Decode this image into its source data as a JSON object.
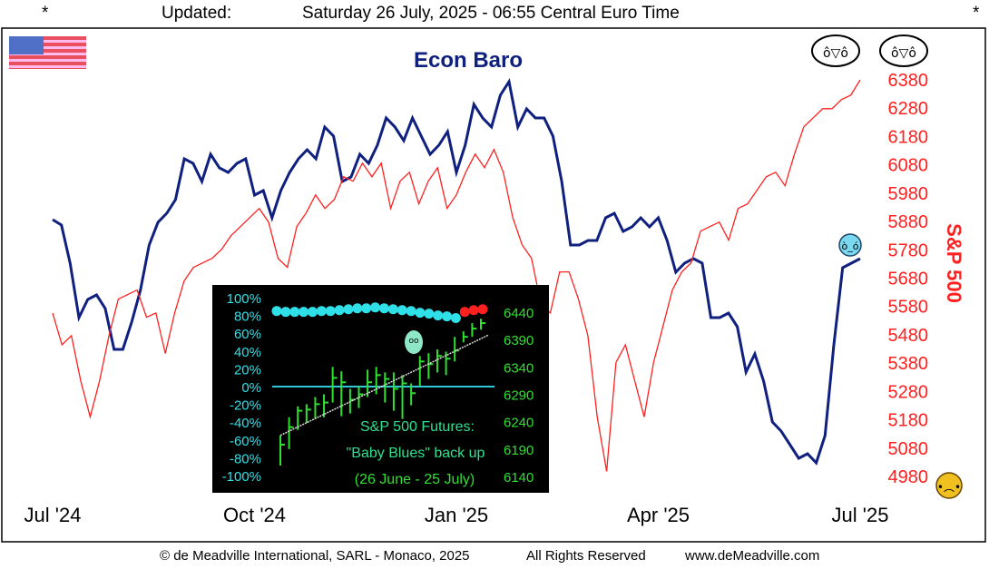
{
  "header": {
    "star_left": "*",
    "star_right": "*",
    "updated_label": "Updated:",
    "timestamp": "Saturday 26 July, 2025 - 06:55 Central Euro Time"
  },
  "footer": {
    "copyright": "© de Meadville International, SARL - Monaco, 2025",
    "rights": "All Rights Reserved",
    "website": "www.deMeadville.com"
  },
  "colors": {
    "econ": "#10207f",
    "spx": "#ff2020",
    "inset_bg": "#000000",
    "inset_cyan": "#30e0e8",
    "inset_green": "#30e030",
    "inset_red": "#ff2020"
  },
  "chart_data": [
    {
      "type": "line",
      "title": "Econ Baro",
      "right_axis_label": "S&P 500",
      "x_tick_labels": [
        "Jul '24",
        "Oct '24",
        "Jan '25",
        "Apr '25",
        "Jul '25"
      ],
      "x_ticks_months": [
        0,
        3,
        6,
        9,
        12
      ],
      "x_range_months": [
        0,
        12
      ],
      "y_right_ticks": [
        6380,
        6280,
        6180,
        6080,
        5980,
        5880,
        5780,
        5680,
        5580,
        5480,
        5380,
        5280,
        5180,
        5080,
        4980
      ],
      "y_right_range": [
        4980,
        6380
      ],
      "econ_range": [
        0,
        100
      ],
      "series": [
        {
          "name": "Econ Baro",
          "axis": "econ",
          "values": [
            60.6,
            59.4,
            51,
            39,
            43,
            44,
            41,
            32,
            32,
            38,
            45,
            55,
            60,
            62,
            65,
            74,
            73,
            69,
            75,
            72,
            71,
            73,
            74,
            66,
            67,
            61,
            67,
            71,
            74,
            76,
            74,
            81,
            79,
            69,
            70,
            75,
            73,
            77,
            83,
            81,
            78,
            83,
            79,
            75,
            77,
            80,
            71,
            77,
            86,
            83,
            81,
            88,
            91,
            81,
            85,
            83,
            83,
            79,
            69,
            55,
            55,
            56,
            56,
            61,
            62,
            58,
            59,
            61,
            59,
            61,
            56,
            49,
            51,
            52,
            51,
            39,
            39,
            40,
            37,
            27,
            31,
            25,
            16,
            14,
            11,
            8,
            9,
            7,
            13,
            33,
            50,
            51,
            52
          ]
        },
        {
          "name": "S&P 500",
          "axis": "right",
          "values": [
            5557,
            5445,
            5477,
            5317,
            5190,
            5317,
            5477,
            5606,
            5622,
            5638,
            5542,
            5557,
            5414,
            5557,
            5670,
            5718,
            5734,
            5750,
            5782,
            5830,
            5862,
            5894,
            5926,
            5878,
            5750,
            5718,
            5862,
            5910,
            5974,
            5926,
            5958,
            6038,
            6022,
            6086,
            6038,
            6086,
            5926,
            6022,
            6054,
            5942,
            6022,
            6070,
            5926,
            5974,
            6054,
            6118,
            6070,
            6134,
            6054,
            5894,
            5798,
            5750,
            5590,
            5557,
            5702,
            5702,
            5606,
            5477,
            5190,
            4998,
            5382,
            5445,
            5317,
            5190,
            5382,
            5510,
            5638,
            5702,
            5734,
            5846,
            5862,
            5878,
            5814,
            5926,
            5942,
            5990,
            6038,
            6054,
            6006,
            6118,
            6214,
            6246,
            6278,
            6278,
            6310,
            6326,
            6380
          ]
        }
      ]
    },
    {
      "type": "bar",
      "title": "S&P 500 Futures:",
      "subtitle": "\"Baby Blues\" back up",
      "date_range": "(26 June - 25 July)",
      "y_left_ticks": [
        "100%",
        "80%",
        "60%",
        "40%",
        "20%",
        "0%",
        "-20%",
        "-40%",
        "-60%",
        "-80%",
        "-100%"
      ],
      "y_right_ticks": [
        6440,
        6390,
        6340,
        6290,
        6240,
        6190,
        6140
      ],
      "y_right_range": [
        6140,
        6440
      ],
      "baby_blues_pct": [
        85,
        84,
        84,
        84,
        84,
        85,
        85,
        86,
        87,
        88,
        88,
        89,
        88,
        87,
        86,
        85,
        83,
        82,
        80,
        79,
        77
      ],
      "baby_blues_recent_pct": [
        84,
        86,
        87
      ],
      "bars": {
        "high": [
          6215,
          6248,
          6268,
          6272,
          6285,
          6290,
          6340,
          6332,
          6300,
          6305,
          6335,
          6340,
          6330,
          6330,
          6325,
          6310,
          6360,
          6365,
          6372,
          6368,
          6395,
          6405,
          6420,
          6428
        ],
        "low": [
          6160,
          6190,
          6225,
          6238,
          6245,
          6248,
          6275,
          6250,
          6255,
          6265,
          6285,
          6290,
          6275,
          6260,
          6245,
          6270,
          6305,
          6318,
          6330,
          6325,
          6350,
          6385,
          6395,
          6408
        ],
        "close": [
          6198,
          6230,
          6260,
          6262,
          6272,
          6275,
          6320,
          6312,
          6280,
          6290,
          6312,
          6325,
          6318,
          6300,
          6310,
          6292,
          6350,
          6345,
          6360,
          6355,
          6370,
          6395,
          6410,
          6420
        ]
      },
      "trend": [
        6215,
        6398
      ]
    }
  ]
}
